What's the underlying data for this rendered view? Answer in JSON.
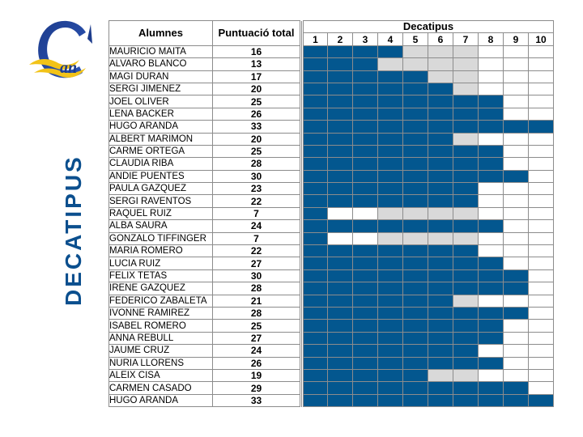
{
  "side_title": "DECATIPUS",
  "logo": {
    "letter": "C",
    "text": "an"
  },
  "headers": {
    "alumnes": "Alumnes",
    "puntuacio": "Puntuació total",
    "decatipus": "Decatipus"
  },
  "columns": [
    "1",
    "2",
    "3",
    "4",
    "5",
    "6",
    "7",
    "8",
    "9",
    "10"
  ],
  "colors": {
    "filled": "#03578f",
    "grey": "#d9d9d9",
    "empty": "#ffffff",
    "title": "#0b4f8e"
  },
  "legend_note": "cells: b = filled (blue), g = grey, w = empty",
  "rows": [
    {
      "name": "MAURICIO MAITA",
      "score": "16",
      "cells": "bbbbgggwww"
    },
    {
      "name": "ALVARO BLANCO",
      "score": "13",
      "cells": "bbbggggwww"
    },
    {
      "name": "MAGI DURAN",
      "score": "17",
      "cells": "bbbbbggwww"
    },
    {
      "name": "SERGI JIMENEZ",
      "score": "20",
      "cells": "bbbbbbgwww"
    },
    {
      "name": "JOEL OLIVER",
      "score": "25",
      "cells": "bbbbbbbbww"
    },
    {
      "name": "LENA BACKER",
      "score": "26",
      "cells": "bbbbbbbbww"
    },
    {
      "name": "HUGO ARANDA",
      "score": "33",
      "cells": "bbbbbbbbbb"
    },
    {
      "name": "ALBERT MARIMON",
      "score": "20",
      "cells": "bbbbbbgwww"
    },
    {
      "name": "CARME ORTEGA",
      "score": "25",
      "cells": "bbbbbbbbww"
    },
    {
      "name": "CLAUDIA RIBA",
      "score": "28",
      "cells": "bbbbbbbbww"
    },
    {
      "name": "ANDIE PUENTES",
      "score": "30",
      "cells": "bbbbbbbbbw"
    },
    {
      "name": "PAULA GAZQUEZ",
      "score": "23",
      "cells": "bbbbbbbwww"
    },
    {
      "name": "SERGI RAVENTOS",
      "score": "22",
      "cells": "bbbbbbbwww"
    },
    {
      "name": "RAQUEL RUIZ",
      "score": "7",
      "cells": "bwwggggwww"
    },
    {
      "name": "ALBA SAURA",
      "score": "24",
      "cells": "bbbbbbbbww"
    },
    {
      "name": "GONZALO TIFFINGER",
      "score": "7",
      "cells": "bwwggggwww"
    },
    {
      "name": "MARIA ROMERO",
      "score": "22",
      "cells": "bbbbbbbwww"
    },
    {
      "name": "LUCIA RUIZ",
      "score": "27",
      "cells": "bbbbbbbbww"
    },
    {
      "name": "FELIX TETAS",
      "score": "30",
      "cells": "bbbbbbbbbw"
    },
    {
      "name": "IRENE GAZQUEZ",
      "score": "28",
      "cells": "bbbbbbbbbw"
    },
    {
      "name": "FEDERICO ZABALETA",
      "score": "21",
      "cells": "bbbbbbgwww"
    },
    {
      "name": "IVONNE RAMIREZ",
      "score": "28",
      "cells": "bbbbbbbbbw"
    },
    {
      "name": "ISABEL ROMERO",
      "score": "25",
      "cells": "bbbbbbbbww"
    },
    {
      "name": "ANNA REBULL",
      "score": "27",
      "cells": "bbbbbbbbww"
    },
    {
      "name": "JAUME CRUZ",
      "score": "24",
      "cells": "bbbbbbbwww"
    },
    {
      "name": "NURIA LLORENS",
      "score": "26",
      "cells": "bbbbbbbbww"
    },
    {
      "name": "ALEIX CISA",
      "score": "19",
      "cells": "bbbbbggwww"
    },
    {
      "name": "CARMEN CASADO",
      "score": "29",
      "cells": "bbbbbbbbbw"
    },
    {
      "name": "HUGO ARANDA",
      "score": "33",
      "cells": "bbbbbbbbbb"
    }
  ]
}
